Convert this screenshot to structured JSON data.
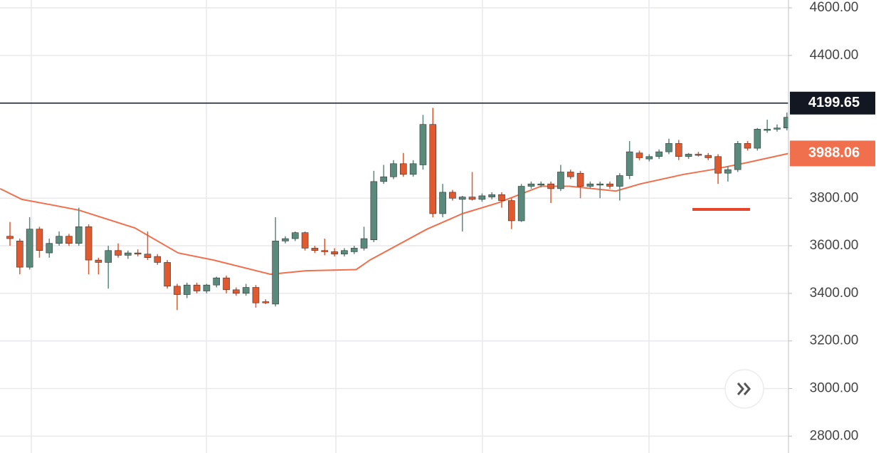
{
  "chart_data": {
    "type": "candlestick",
    "up_color": "#5a8a7c",
    "down_color": "#e0592f",
    "ylim": [
      2729,
      4633
    ],
    "yticks": [
      {
        "value": 4600,
        "label": "4600.00"
      },
      {
        "value": 4400,
        "label": "4400.00"
      },
      {
        "value": 3800,
        "label": "3800.00"
      },
      {
        "value": 3600,
        "label": "3600.00"
      },
      {
        "value": 3400,
        "label": "3400.00"
      },
      {
        "value": 3200,
        "label": "3200.00"
      },
      {
        "value": 3000,
        "label": "3000.00"
      },
      {
        "value": 2800,
        "label": "2800.00"
      }
    ],
    "grid": true,
    "open": [
      3640,
      3620,
      3510,
      3670,
      3570,
      3610,
      3640,
      3610,
      3680,
      3540,
      3530,
      3580,
      3560,
      3570,
      3565,
      3555,
      3530,
      3430,
      3395,
      3435,
      3410,
      3435,
      3465,
      3415,
      3400,
      3425,
      3365,
      3355,
      3620,
      3630,
      3655,
      3590,
      3580,
      3575,
      3565,
      3575,
      3590,
      3625,
      3870,
      3890,
      3945,
      3900,
      3940,
      4110,
      3735,
      3825,
      3795,
      3805,
      3795,
      3805,
      3815,
      3790,
      3705,
      3850,
      3855,
      3860,
      3840,
      3910,
      3905,
      3850,
      3855,
      3860,
      3850,
      3895,
      3990,
      3965,
      3975,
      3995,
      4030,
      3975,
      3985,
      3980,
      3975,
      3905,
      3920,
      4030,
      4010,
      4085,
      4090,
      4095
    ],
    "high": [
      3700,
      3630,
      3720,
      3680,
      3630,
      3660,
      3650,
      3760,
      3690,
      3550,
      3600,
      3610,
      3580,
      3585,
      3660,
      3565,
      3540,
      3440,
      3445,
      3445,
      3440,
      3470,
      3475,
      3425,
      3440,
      3435,
      3375,
      3720,
      3640,
      3660,
      3660,
      3600,
      3630,
      3590,
      3590,
      3600,
      3680,
      3915,
      3940,
      3960,
      3990,
      3960,
      4150,
      4180,
      3860,
      3835,
      3810,
      3910,
      3820,
      3825,
      3825,
      3800,
      3860,
      3870,
      3870,
      3870,
      3940,
      3920,
      3915,
      3870,
      3870,
      3870,
      3905,
      4040,
      4000,
      3985,
      4005,
      4050,
      4045,
      3990,
      3995,
      3990,
      3985,
      3935,
      4040,
      4040,
      4095,
      4130,
      4110,
      4160
    ],
    "low": [
      3600,
      3480,
      3500,
      3550,
      3550,
      3600,
      3600,
      3600,
      3480,
      3480,
      3420,
      3550,
      3545,
      3555,
      3540,
      3520,
      3420,
      3330,
      3380,
      3400,
      3400,
      3425,
      3400,
      3390,
      3390,
      3340,
      3355,
      3345,
      3610,
      3620,
      3580,
      3570,
      3560,
      3555,
      3555,
      3565,
      3580,
      3615,
      3860,
      3880,
      3890,
      3890,
      3920,
      3720,
      3720,
      3790,
      3660,
      3790,
      3785,
      3795,
      3760,
      3670,
      3700,
      3840,
      3845,
      3780,
      3830,
      3880,
      3800,
      3840,
      3800,
      3840,
      3790,
      3880,
      3960,
      3955,
      3965,
      3985,
      3960,
      3965,
      3975,
      3960,
      3860,
      3870,
      3910,
      4000,
      4000,
      4075,
      4080,
      4085
    ],
    "close": [
      3630,
      3510,
      3670,
      3580,
      3610,
      3640,
      3610,
      3680,
      3540,
      3530,
      3580,
      3560,
      3570,
      3565,
      3550,
      3530,
      3430,
      3395,
      3435,
      3410,
      3435,
      3465,
      3415,
      3400,
      3425,
      3360,
      3360,
      3620,
      3630,
      3655,
      3590,
      3580,
      3575,
      3565,
      3580,
      3590,
      3630,
      3870,
      3890,
      3945,
      3900,
      3945,
      4110,
      3735,
      3825,
      3800,
      3805,
      3795,
      3810,
      3815,
      3790,
      3705,
      3850,
      3860,
      3860,
      3840,
      3910,
      3890,
      3850,
      3860,
      3860,
      3850,
      3895,
      3995,
      3970,
      3975,
      3995,
      4030,
      3975,
      3985,
      3980,
      3970,
      3905,
      3920,
      4030,
      4010,
      4090,
      4090,
      4095,
      4140
    ],
    "ma": {
      "color": "#f0704e",
      "x": [
        -1,
        1.2,
        4.1,
        7,
        12.7,
        17.1,
        20.7,
        26.5,
        30.1,
        35.2,
        36.6,
        42.4,
        46,
        49.6,
        54,
        56.9,
        61.6,
        64.1,
        68.5,
        71.4,
        75,
        79.2
      ],
      "values": [
        3840,
        3795,
        3773,
        3750,
        3675,
        3570,
        3540,
        3480,
        3495,
        3500,
        3540,
        3670,
        3735,
        3780,
        3850,
        3850,
        3830,
        3860,
        3900,
        3920,
        3950,
        3988.06
      ]
    },
    "last_price": 4199.65,
    "last_price_color": "#131722"
  }
}
